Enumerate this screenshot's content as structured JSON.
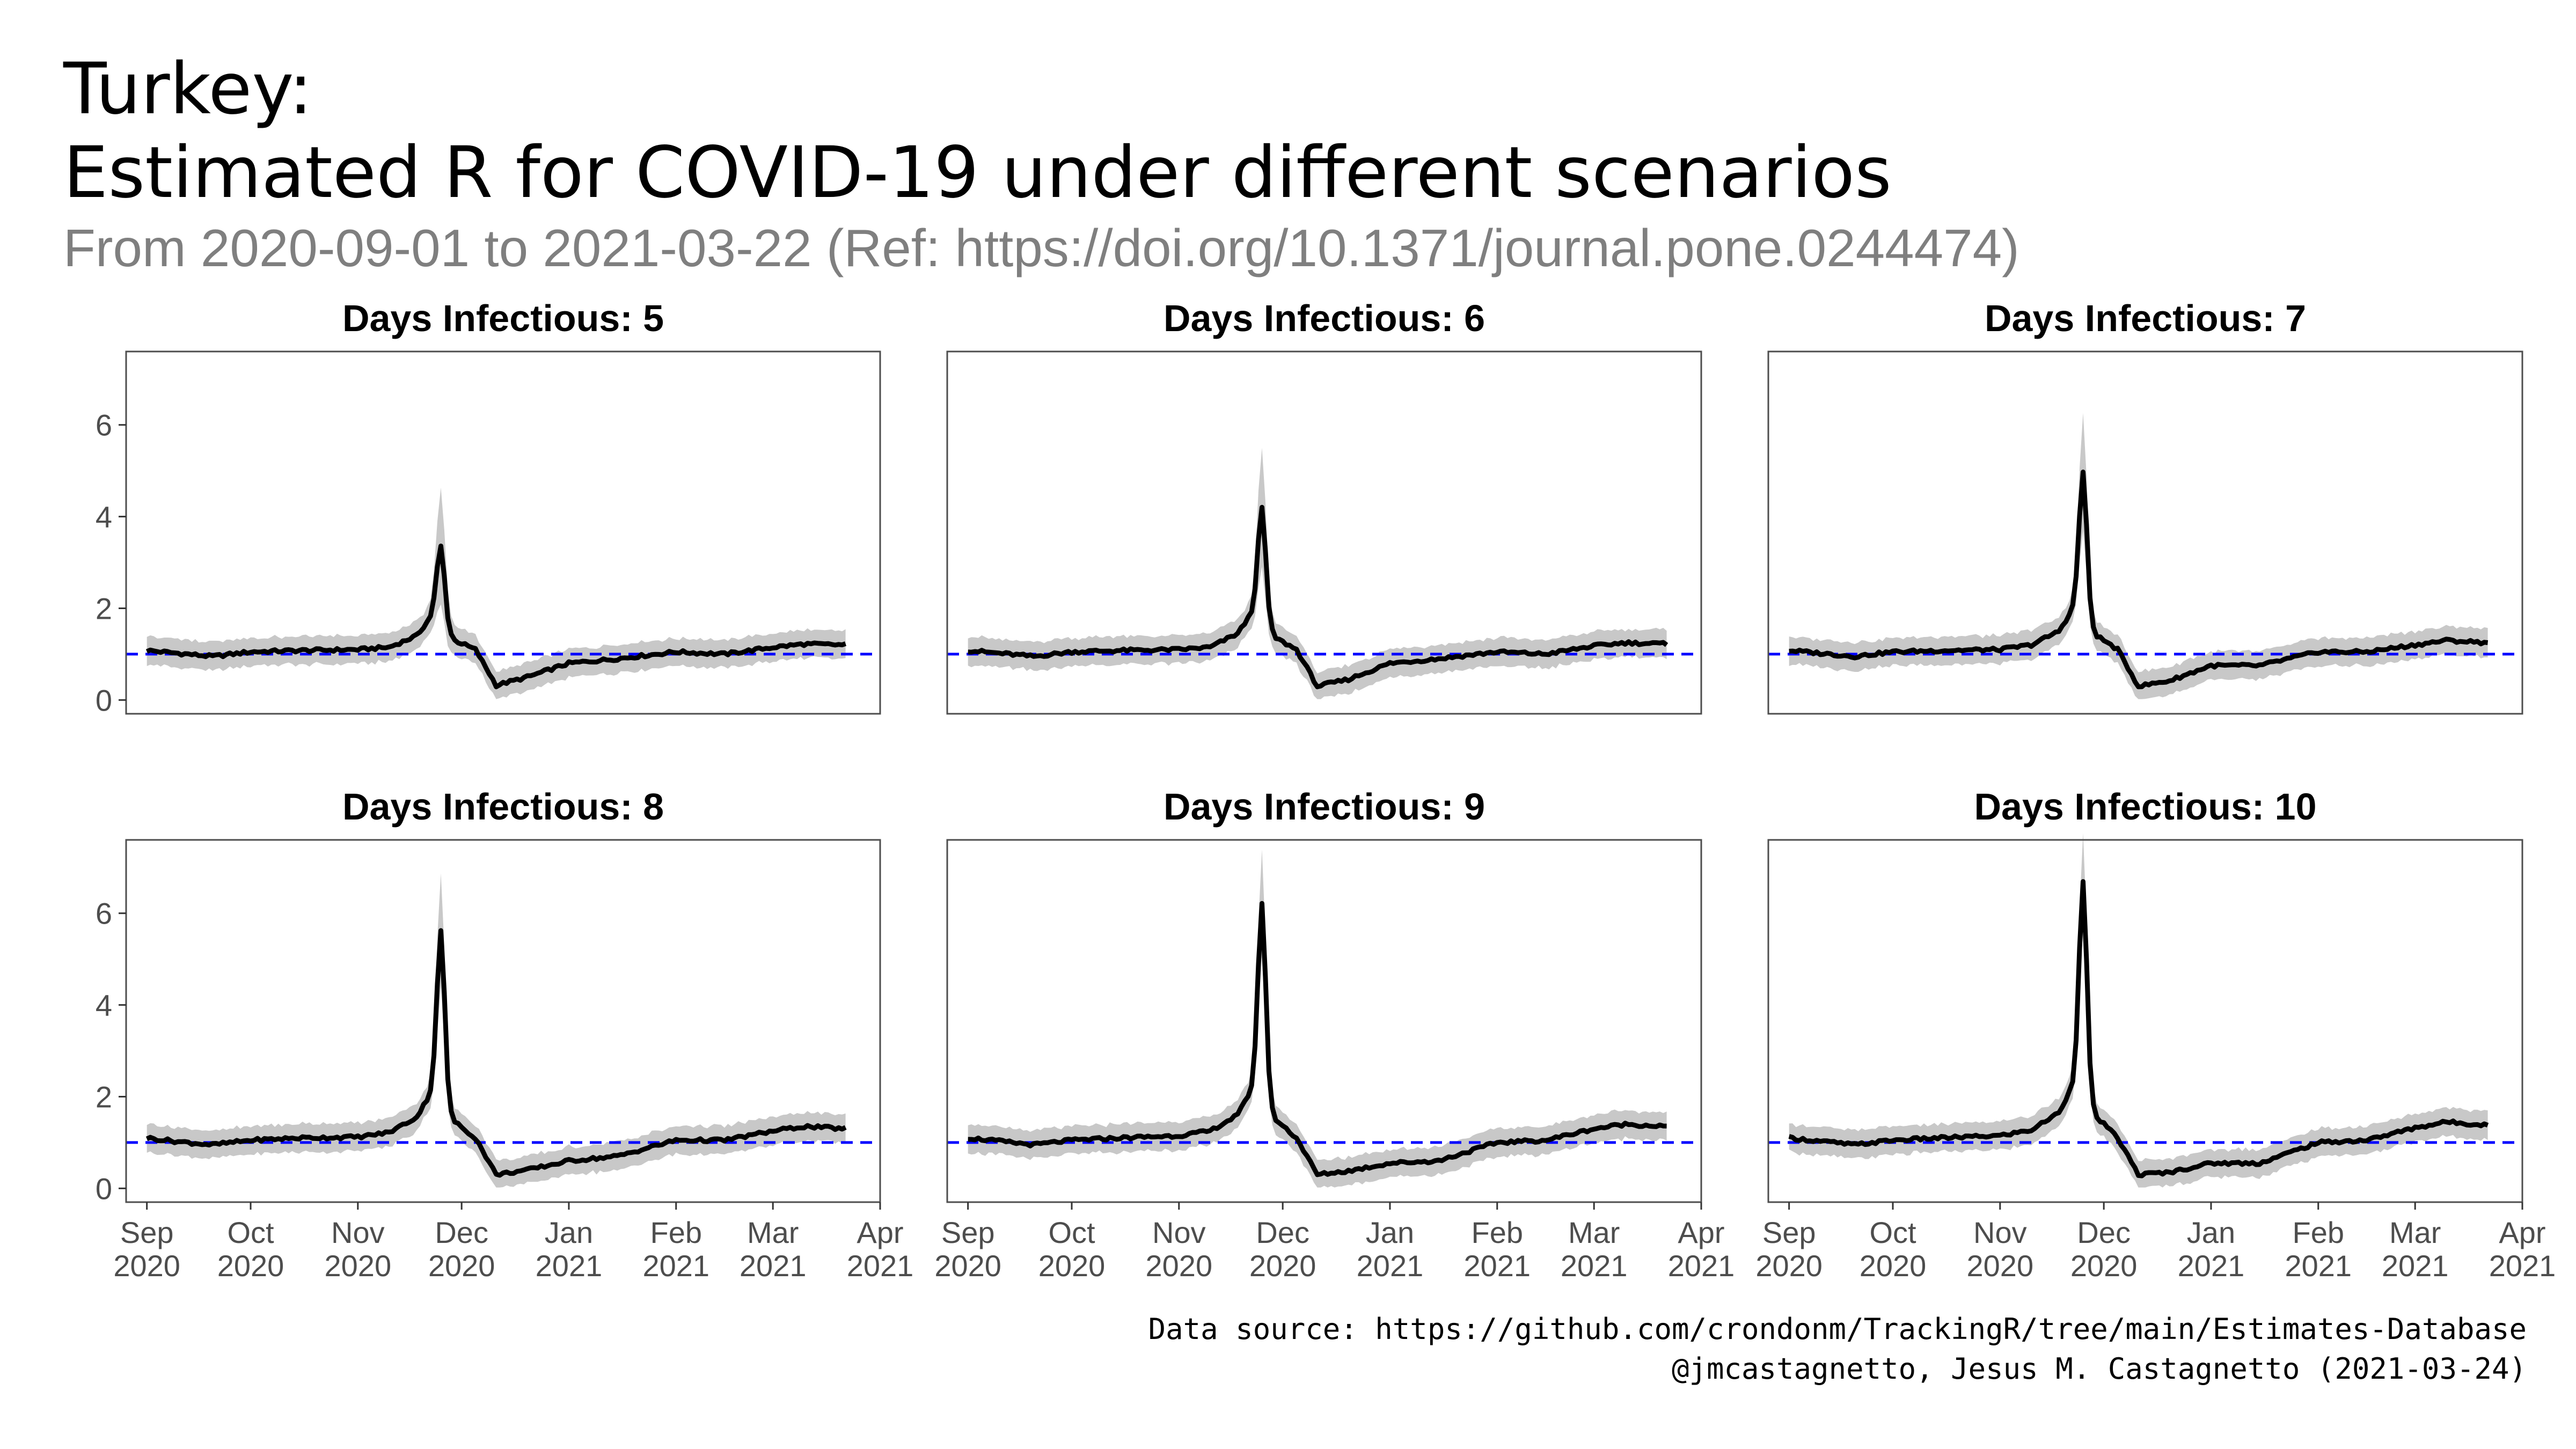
{
  "title_line1": "Turkey:",
  "title_line2": "Estimated R for COVID-19 under different scenarios",
  "subtitle": "From 2020-09-01 to 2021-03-22 (Ref: https://doi.org/10.1371/journal.pone.0244474)",
  "caption_line1": "Data source: https://github.com/crondonm/TrackingR/tree/main/Estimates-Database",
  "caption_line2": "@jmcastagnetto, Jesus M. Castagnetto (2021-03-24)",
  "colors": {
    "line": "#000000",
    "ribbon": "#c8c8c8",
    "reference": "#0000ff",
    "panel_border": "#4d4d4d"
  },
  "chart_data": {
    "type": "line",
    "x_start": "2020-09-01",
    "x_end": "2021-03-22",
    "xlim": [
      "2020-08-26",
      "2021-04-01"
    ],
    "ylim": [
      -0.3,
      7.6
    ],
    "y_ticks": [
      0,
      2,
      4,
      6
    ],
    "reference_line": 1,
    "x_ticks": [
      {
        "date": "2020-09-01",
        "month": "Sep",
        "year": "2020"
      },
      {
        "date": "2020-10-01",
        "month": "Oct",
        "year": "2020"
      },
      {
        "date": "2020-11-01",
        "month": "Nov",
        "year": "2020"
      },
      {
        "date": "2020-12-01",
        "month": "Dec",
        "year": "2020"
      },
      {
        "date": "2021-01-01",
        "month": "Jan",
        "year": "2021"
      },
      {
        "date": "2021-02-01",
        "month": "Feb",
        "year": "2021"
      },
      {
        "date": "2021-03-01",
        "month": "Mar",
        "year": "2021"
      },
      {
        "date": "2021-04-01",
        "month": "Apr",
        "year": "2021"
      }
    ],
    "panels": [
      {
        "title": "Days Infectious: 5",
        "days_infectious": 5,
        "peak_date": "2020-11-25",
        "peak_r": 3.55,
        "peak_upper": 4.5,
        "points": [
          [
            "2020-09-01",
            1.08
          ],
          [
            "2020-09-10",
            1.02
          ],
          [
            "2020-09-20",
            0.95
          ],
          [
            "2020-10-01",
            1.05
          ],
          [
            "2020-10-15",
            1.08
          ],
          [
            "2020-11-01",
            1.1
          ],
          [
            "2020-11-10",
            1.15
          ],
          [
            "2020-11-18",
            1.4
          ],
          [
            "2020-11-23",
            1.9
          ],
          [
            "2020-11-29",
            1.3
          ],
          [
            "2020-12-05",
            1.1
          ],
          [
            "2020-12-11",
            0.32
          ],
          [
            "2020-12-20",
            0.5
          ],
          [
            "2021-01-01",
            0.8
          ],
          [
            "2021-01-15",
            0.9
          ],
          [
            "2021-02-01",
            1.05
          ],
          [
            "2021-02-15",
            1.0
          ],
          [
            "2021-03-01",
            1.15
          ],
          [
            "2021-03-10",
            1.22
          ],
          [
            "2021-03-22",
            1.2
          ]
        ]
      },
      {
        "title": "Days Infectious: 6",
        "days_infectious": 6,
        "peak_date": "2020-11-25",
        "peak_r": 4.3,
        "peak_upper": 5.3,
        "points": [
          [
            "2020-09-01",
            1.08
          ],
          [
            "2020-09-10",
            1.02
          ],
          [
            "2020-09-20",
            0.95
          ],
          [
            "2020-10-01",
            1.05
          ],
          [
            "2020-10-15",
            1.08
          ],
          [
            "2020-11-01",
            1.1
          ],
          [
            "2020-11-10",
            1.15
          ],
          [
            "2020-11-18",
            1.45
          ],
          [
            "2020-11-23",
            2.0
          ],
          [
            "2020-11-29",
            1.35
          ],
          [
            "2020-12-05",
            1.1
          ],
          [
            "2020-12-11",
            0.3
          ],
          [
            "2020-12-20",
            0.45
          ],
          [
            "2021-01-01",
            0.8
          ],
          [
            "2021-01-15",
            0.9
          ],
          [
            "2021-02-01",
            1.05
          ],
          [
            "2021-02-15",
            1.0
          ],
          [
            "2021-03-01",
            1.18
          ],
          [
            "2021-03-10",
            1.25
          ],
          [
            "2021-03-22",
            1.22
          ]
        ]
      },
      {
        "title": "Days Infectious: 7",
        "days_infectious": 7,
        "peak_date": "2020-11-25",
        "peak_r": 5.0,
        "peak_upper": 6.0,
        "points": [
          [
            "2020-09-01",
            1.08
          ],
          [
            "2020-09-10",
            1.02
          ],
          [
            "2020-09-20",
            0.95
          ],
          [
            "2020-10-01",
            1.05
          ],
          [
            "2020-10-15",
            1.08
          ],
          [
            "2020-11-01",
            1.1
          ],
          [
            "2020-11-10",
            1.2
          ],
          [
            "2020-11-18",
            1.5
          ],
          [
            "2020-11-23",
            2.1
          ],
          [
            "2020-11-29",
            1.4
          ],
          [
            "2020-12-05",
            1.1
          ],
          [
            "2020-12-11",
            0.3
          ],
          [
            "2020-12-20",
            0.42
          ],
          [
            "2021-01-01",
            0.75
          ],
          [
            "2021-01-15",
            0.75
          ],
          [
            "2021-02-01",
            1.05
          ],
          [
            "2021-02-15",
            1.05
          ],
          [
            "2021-03-01",
            1.2
          ],
          [
            "2021-03-10",
            1.3
          ],
          [
            "2021-03-22",
            1.25
          ]
        ]
      },
      {
        "title": "Days Infectious: 8",
        "days_infectious": 8,
        "peak_date": "2020-11-25",
        "peak_r": 5.55,
        "peak_upper": 6.5,
        "points": [
          [
            "2020-09-01",
            1.1
          ],
          [
            "2020-09-10",
            1.02
          ],
          [
            "2020-09-20",
            0.95
          ],
          [
            "2020-10-01",
            1.05
          ],
          [
            "2020-10-15",
            1.1
          ],
          [
            "2020-11-01",
            1.12
          ],
          [
            "2020-11-10",
            1.22
          ],
          [
            "2020-11-18",
            1.55
          ],
          [
            "2020-11-23",
            2.2
          ],
          [
            "2020-11-29",
            1.45
          ],
          [
            "2020-12-05",
            1.1
          ],
          [
            "2020-12-11",
            0.3
          ],
          [
            "2020-12-20",
            0.4
          ],
          [
            "2021-01-01",
            0.6
          ],
          [
            "2021-01-15",
            0.7
          ],
          [
            "2021-02-01",
            1.05
          ],
          [
            "2021-02-15",
            1.05
          ],
          [
            "2021-03-01",
            1.25
          ],
          [
            "2021-03-10",
            1.35
          ],
          [
            "2021-03-22",
            1.3
          ]
        ]
      },
      {
        "title": "Days Infectious: 9",
        "days_infectious": 9,
        "peak_date": "2020-11-25",
        "peak_r": 6.05,
        "peak_upper": 6.9,
        "points": [
          [
            "2020-09-01",
            1.1
          ],
          [
            "2020-09-10",
            1.03
          ],
          [
            "2020-09-20",
            0.95
          ],
          [
            "2020-10-01",
            1.05
          ],
          [
            "2020-10-15",
            1.1
          ],
          [
            "2020-11-01",
            1.15
          ],
          [
            "2020-11-10",
            1.25
          ],
          [
            "2020-11-18",
            1.6
          ],
          [
            "2020-11-23",
            2.3
          ],
          [
            "2020-11-29",
            1.5
          ],
          [
            "2020-12-05",
            1.1
          ],
          [
            "2020-12-11",
            0.3
          ],
          [
            "2020-12-20",
            0.38
          ],
          [
            "2021-01-01",
            0.55
          ],
          [
            "2021-01-15",
            0.6
          ],
          [
            "2021-02-01",
            1.0
          ],
          [
            "2021-02-15",
            1.05
          ],
          [
            "2021-03-01",
            1.3
          ],
          [
            "2021-03-10",
            1.4
          ],
          [
            "2021-03-22",
            1.35
          ]
        ]
      },
      {
        "title": "Days Infectious: 10",
        "days_infectious": 10,
        "peak_date": "2020-11-25",
        "peak_r": 6.45,
        "peak_upper": 7.2,
        "points": [
          [
            "2020-09-01",
            1.1
          ],
          [
            "2020-09-10",
            1.03
          ],
          [
            "2020-09-20",
            0.95
          ],
          [
            "2020-10-01",
            1.05
          ],
          [
            "2020-10-15",
            1.1
          ],
          [
            "2020-11-01",
            1.15
          ],
          [
            "2020-11-10",
            1.27
          ],
          [
            "2020-11-18",
            1.65
          ],
          [
            "2020-11-23",
            2.4
          ],
          [
            "2020-11-29",
            1.55
          ],
          [
            "2020-12-05",
            1.1
          ],
          [
            "2020-12-11",
            0.3
          ],
          [
            "2020-12-20",
            0.35
          ],
          [
            "2021-01-01",
            0.55
          ],
          [
            "2021-01-15",
            0.55
          ],
          [
            "2021-02-01",
            1.0
          ],
          [
            "2021-02-15",
            1.05
          ],
          [
            "2021-03-01",
            1.32
          ],
          [
            "2021-03-10",
            1.45
          ],
          [
            "2021-03-22",
            1.38
          ]
        ]
      }
    ]
  }
}
